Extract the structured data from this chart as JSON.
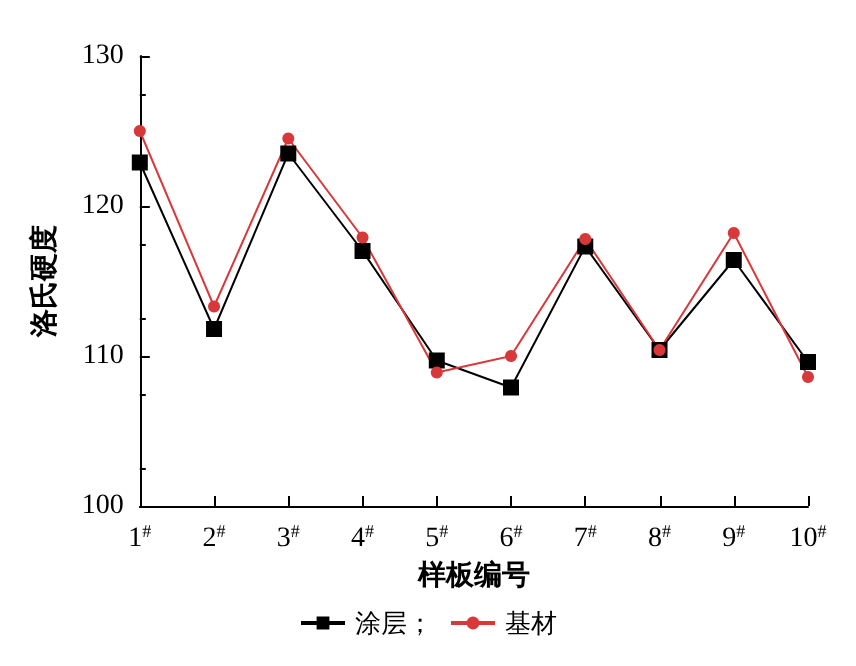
{
  "chart_data": {
    "type": "line",
    "xlabel": "样板编号",
    "ylabel": "洛氏硬度",
    "categories": [
      "1$^{#}$",
      "2$^{#}$",
      "3$^{#}$",
      "4$^{#}$",
      "5$^{#}$",
      "6$^{#}$",
      "7$^{#}$",
      "8$^{#}$",
      "9$^{#}$",
      "10$^{#}$"
    ],
    "series": [
      {
        "name": "涂层；",
        "color": "#000000",
        "marker": "square",
        "values": [
          122.9,
          111.8,
          123.5,
          117.0,
          109.7,
          107.9,
          117.3,
          110.4,
          116.4,
          109.6
        ]
      },
      {
        "name": "基材",
        "color": "#d9383a",
        "marker": "circle",
        "values": [
          125.0,
          113.3,
          124.5,
          117.9,
          108.9,
          110.0,
          117.8,
          110.4,
          118.2,
          108.6
        ]
      }
    ],
    "ylim": [
      100,
      130
    ],
    "yticks": [
      100,
      110,
      120,
      130
    ],
    "grid": false,
    "legend": "bottom",
    "line_style": "solid"
  }
}
